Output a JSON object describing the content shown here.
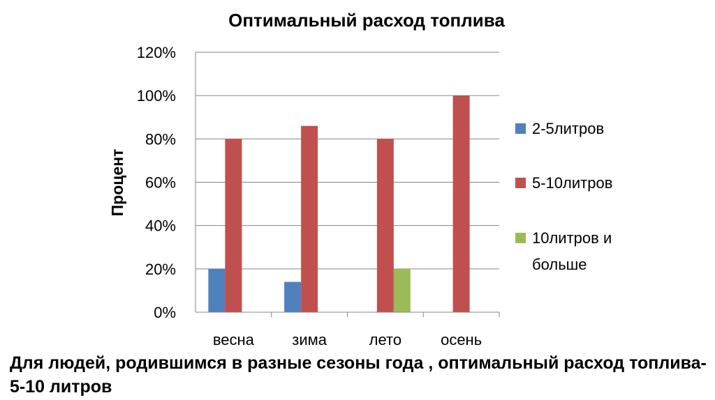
{
  "caption": "Для людей, родившимся в разные сезоны года , оптимальный расход топлива- 5-10 литров",
  "chart_data": {
    "type": "bar",
    "title": "Оптимальный расход топлива",
    "xlabel": "",
    "ylabel": "Процент",
    "categories": [
      "весна",
      "зима",
      "лето",
      "осень"
    ],
    "series": [
      {
        "name": "2-5литров",
        "values": [
          20,
          14,
          0,
          0
        ],
        "color": "#4F81BD"
      },
      {
        "name": "5-10литров",
        "values": [
          80,
          86,
          80,
          100
        ],
        "color": "#C0504D"
      },
      {
        "name": "10литров и больше",
        "values": [
          0,
          0,
          20,
          0
        ],
        "color": "#9BBB59"
      }
    ],
    "legend_lines": [
      [
        "2-5литров"
      ],
      [
        "5-10литров"
      ],
      [
        "10литров и",
        "больше"
      ]
    ],
    "ylim": [
      0,
      120
    ],
    "yticks": [
      0,
      20,
      40,
      60,
      80,
      100,
      120
    ],
    "ytick_labels": [
      "0%",
      "20%",
      "40%",
      "60%",
      "80%",
      "100%",
      "120%"
    ],
    "grid": true,
    "legend_position": "right"
  }
}
